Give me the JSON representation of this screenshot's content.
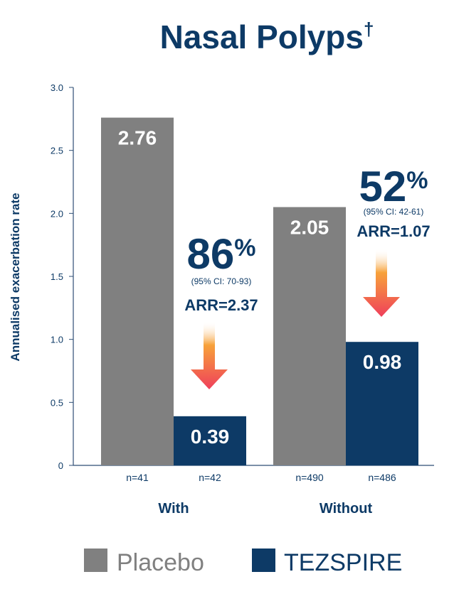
{
  "title": {
    "main": "Nasal Polyps",
    "dagger": "†"
  },
  "chart_data": {
    "type": "bar",
    "ylabel": "Annualised exacerbation rate",
    "ylim": [
      0,
      3.0
    ],
    "yticks": [
      "0",
      "0.5",
      "1.0",
      "1.5",
      "2.0",
      "2.5",
      "3.0"
    ],
    "categories": [
      "With",
      "Without"
    ],
    "series": [
      {
        "name": "Placebo",
        "color": "#808080",
        "values": [
          2.76,
          2.05
        ],
        "labels": [
          "2.76",
          "2.05"
        ],
        "n": [
          "n=41",
          "n=490"
        ]
      },
      {
        "name": "TEZSPIRE",
        "color": "#0d3a66",
        "values": [
          0.39,
          0.98
        ],
        "labels": [
          "0.39",
          "0.98"
        ],
        "n": [
          "n=42",
          "n=486"
        ]
      }
    ],
    "annotations": [
      {
        "group": "With",
        "percent": "86",
        "sign": "%",
        "ci": "(95% CI: 70-93)",
        "arr": "ARR=2.37"
      },
      {
        "group": "Without",
        "percent": "52",
        "sign": "%",
        "ci": "(95% CI: 42-61)",
        "arr": "ARR=1.07"
      }
    ],
    "legend": {
      "position": "bottom"
    },
    "grid": false
  }
}
